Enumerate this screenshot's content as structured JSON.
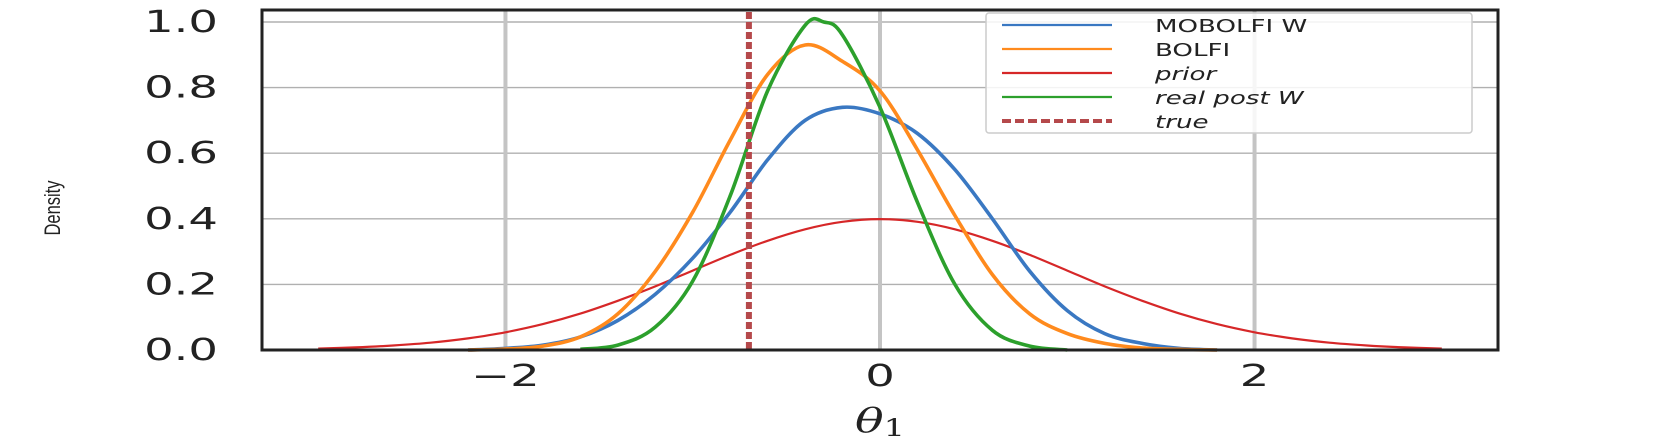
{
  "chart_data": {
    "type": "line",
    "xlabel": "θ₁",
    "xlabel_sub": "1",
    "xlabel_main": "θ",
    "ylabel": "Density",
    "xlim": [
      -3.3,
      3.3
    ],
    "ylim": [
      0.0,
      1.0
    ],
    "xticks": [
      -2,
      0,
      2
    ],
    "xtick_labels": [
      "−2",
      "0",
      "2"
    ],
    "yticks": [
      0.0,
      0.2,
      0.4,
      0.6,
      0.8,
      1.0
    ],
    "ytick_labels": [
      "0.0",
      "0.2",
      "0.4",
      "0.6",
      "0.8",
      "1.0"
    ],
    "grid": true,
    "legend_position": "top-right",
    "true_value": -0.7,
    "series": [
      {
        "name": "MOBOLFI W",
        "color": "#3a78c2",
        "style": "solid",
        "x": [
          -2.2,
          -2.0,
          -1.8,
          -1.6,
          -1.4,
          -1.2,
          -1.0,
          -0.8,
          -0.6,
          -0.4,
          -0.2,
          0.0,
          0.2,
          0.4,
          0.6,
          0.8,
          1.0,
          1.2,
          1.4,
          1.6,
          1.8
        ],
        "y": [
          0.0,
          0.005,
          0.015,
          0.04,
          0.09,
          0.17,
          0.28,
          0.42,
          0.58,
          0.7,
          0.74,
          0.72,
          0.66,
          0.55,
          0.4,
          0.24,
          0.12,
          0.05,
          0.02,
          0.005,
          0.0
        ]
      },
      {
        "name": "BOLFI",
        "color": "#ff8a1d",
        "style": "solid",
        "x": [
          -2.2,
          -2.0,
          -1.8,
          -1.6,
          -1.4,
          -1.2,
          -1.0,
          -0.8,
          -0.6,
          -0.4,
          -0.2,
          0.0,
          0.2,
          0.4,
          0.6,
          0.8,
          1.0,
          1.2,
          1.4,
          1.6,
          1.8
        ],
        "y": [
          0.0,
          0.003,
          0.012,
          0.04,
          0.11,
          0.24,
          0.42,
          0.64,
          0.84,
          0.93,
          0.88,
          0.79,
          0.61,
          0.41,
          0.23,
          0.11,
          0.05,
          0.02,
          0.006,
          0.002,
          0.0
        ]
      },
      {
        "name": "prior",
        "color": "#d62728",
        "style": "solid",
        "x": [
          -3.0,
          -2.8,
          -2.6,
          -2.4,
          -2.2,
          -2.0,
          -1.8,
          -1.6,
          -1.4,
          -1.2,
          -1.0,
          -0.8,
          -0.6,
          -0.4,
          -0.2,
          0.0,
          0.2,
          0.4,
          0.6,
          0.8,
          1.0,
          1.2,
          1.4,
          1.6,
          1.8,
          2.0,
          2.2,
          2.4,
          2.6,
          2.8,
          3.0
        ],
        "y": [
          0.0044,
          0.0079,
          0.0136,
          0.0224,
          0.0355,
          0.054,
          0.079,
          0.111,
          0.15,
          0.194,
          0.242,
          0.29,
          0.333,
          0.368,
          0.391,
          0.399,
          0.391,
          0.368,
          0.333,
          0.29,
          0.242,
          0.194,
          0.15,
          0.111,
          0.079,
          0.054,
          0.0355,
          0.0224,
          0.0136,
          0.0079,
          0.0044
        ]
      },
      {
        "name": "real post W",
        "color": "#2ca02c",
        "style": "solid",
        "x": [
          -1.6,
          -1.4,
          -1.2,
          -1.0,
          -0.8,
          -0.6,
          -0.4,
          -0.3,
          -0.2,
          0.0,
          0.2,
          0.4,
          0.6,
          0.8,
          1.0
        ],
        "y": [
          0.002,
          0.015,
          0.07,
          0.21,
          0.47,
          0.79,
          0.99,
          1.0,
          0.96,
          0.74,
          0.45,
          0.2,
          0.06,
          0.012,
          0.0
        ]
      }
    ],
    "true_series": {
      "name": "true",
      "color": "#b5494b",
      "style": "dashed"
    }
  }
}
